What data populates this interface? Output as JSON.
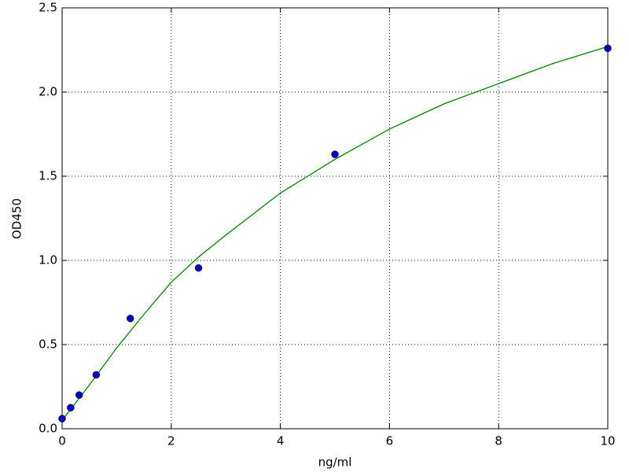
{
  "chart_data": {
    "type": "scatter",
    "xlabel": "ng/ml",
    "ylabel": "OD450",
    "xlim": [
      0,
      10
    ],
    "ylim": [
      0,
      2.5
    ],
    "xticks": [
      0,
      2,
      4,
      6,
      8,
      10
    ],
    "yticks": [
      {
        "value": 0,
        "label": "0.0"
      },
      0.5,
      {
        "value": 1,
        "label": "1.0"
      },
      1.5,
      {
        "value": 2,
        "label": "2.0"
      },
      2.5
    ],
    "grid": true,
    "series": [
      {
        "mode": "markers",
        "color": "#0000bf",
        "x": [
          0,
          0.156,
          0.3125,
          0.625,
          1.25,
          2.5,
          5,
          10
        ],
        "values": [
          0.06,
          0.125,
          0.2,
          0.32,
          0.655,
          0.955,
          1.63,
          2.26
        ]
      },
      {
        "mode": "line",
        "color": "#008000",
        "x": [
          0,
          0.5,
          1,
          1.5,
          2,
          2.5,
          3,
          4,
          5,
          6,
          7,
          8,
          9,
          10
        ],
        "values": [
          0.05,
          0.26,
          0.48,
          0.68,
          0.87,
          1.02,
          1.15,
          1.4,
          1.6,
          1.78,
          1.93,
          2.05,
          2.17,
          2.27
        ]
      }
    ]
  }
}
